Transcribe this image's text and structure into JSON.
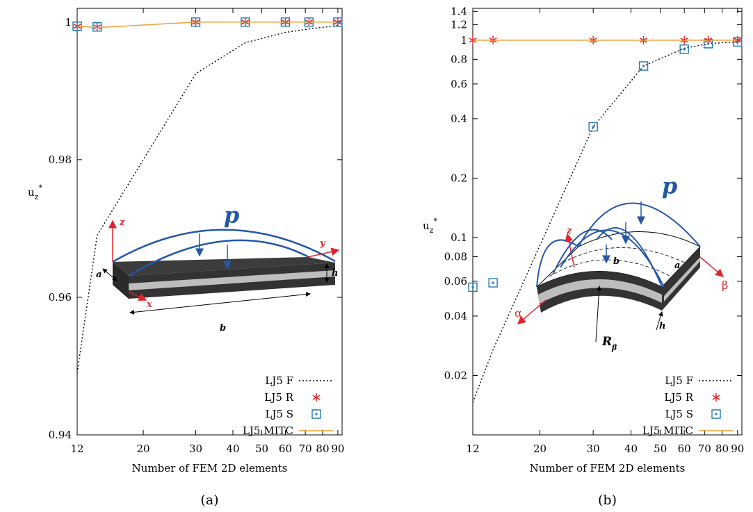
{
  "chart_data": [
    {
      "type": "line",
      "xscale": "log",
      "yscale": "linear",
      "ylabel": "u",
      "ylabel_sub": "z",
      "ylabel_sup": "*",
      "xlabel": "Number of FEM 2D elements",
      "caption": "(a)",
      "x": [
        12,
        14,
        30,
        44,
        60,
        72,
        90
      ],
      "xlim": [
        12,
        93
      ],
      "xticks": [
        12,
        20,
        30,
        40,
        50,
        60,
        70,
        80,
        90
      ],
      "ylim": [
        0.94,
        1.002
      ],
      "yticks": [
        0.94,
        0.96,
        0.98,
        1
      ],
      "legend": "lower right",
      "series": [
        {
          "name": "LJ5 F",
          "color": "#000000",
          "style": "dotted",
          "values": [
            0.949,
            0.969,
            0.9925,
            0.997,
            0.9985,
            0.999,
            0.9995
          ]
        },
        {
          "name": "LJ5 R",
          "color": "#e0252a",
          "style": "asterisk",
          "values": [
            0.9994,
            0.9993,
            1.0,
            1.0,
            1.0,
            1.0,
            1.0
          ]
        },
        {
          "name": "LJ5 S",
          "color": "#1f7bb6",
          "style": "square",
          "values": [
            0.9994,
            0.9993,
            1.0,
            1.0,
            1.0,
            1.0,
            1.0
          ]
        },
        {
          "name": "LJ5 MITC",
          "color": "#f0a030",
          "style": "solid",
          "values": [
            0.9994,
            0.9992,
            1.0,
            1.0,
            1.0,
            1.0,
            1.0
          ]
        }
      ],
      "inset_labels": {
        "p": "p",
        "z": "z",
        "y": "y",
        "x": "x",
        "a": "a",
        "b": "b",
        "h": "h"
      }
    },
    {
      "type": "line",
      "xscale": "log",
      "yscale": "log",
      "ylabel": "u",
      "ylabel_sub": "z",
      "ylabel_sup": "*",
      "xlabel": "Number of FEM 2D elements",
      "caption": "(b)",
      "x": [
        12,
        14,
        30,
        44,
        60,
        72,
        90
      ],
      "xlim": [
        12,
        93
      ],
      "xticks": [
        12,
        20,
        30,
        40,
        50,
        60,
        70,
        80,
        90
      ],
      "ylim": [
        0.01,
        1.45
      ],
      "yticks": [
        0.02,
        0.04,
        0.06,
        0.08,
        0.1,
        0.2,
        0.4,
        0.6,
        0.8,
        1,
        1.2,
        1.4
      ],
      "legend": "lower right",
      "series": [
        {
          "name": "LJ5 F",
          "color": "#000000",
          "style": "dotted",
          "values": [
            0.0146,
            0.027,
            0.364,
            0.74,
            0.91,
            0.96,
            0.98
          ]
        },
        {
          "name": "LJ5 R",
          "color": "#e0252a",
          "style": "asterisk",
          "values": [
            1.0,
            1.0,
            1.0,
            1.0,
            1.0,
            1.0,
            1.0
          ]
        },
        {
          "name": "LJ5 S",
          "color": "#1f7bb6",
          "style": "square",
          "values": [
            0.056,
            0.059,
            0.364,
            0.74,
            0.9,
            0.96,
            0.98
          ]
        },
        {
          "name": "LJ5 MITC",
          "color": "#f0a030",
          "style": "solid",
          "values": [
            1.0,
            1.0,
            1.0,
            1.0,
            1.0,
            1.0,
            1.0
          ]
        }
      ],
      "inset_labels": {
        "p": "p",
        "z": "z",
        "alpha": "α",
        "beta": "β",
        "a": "a",
        "b": "b",
        "h": "h",
        "R": "R",
        "R_sub": "β"
      }
    }
  ]
}
